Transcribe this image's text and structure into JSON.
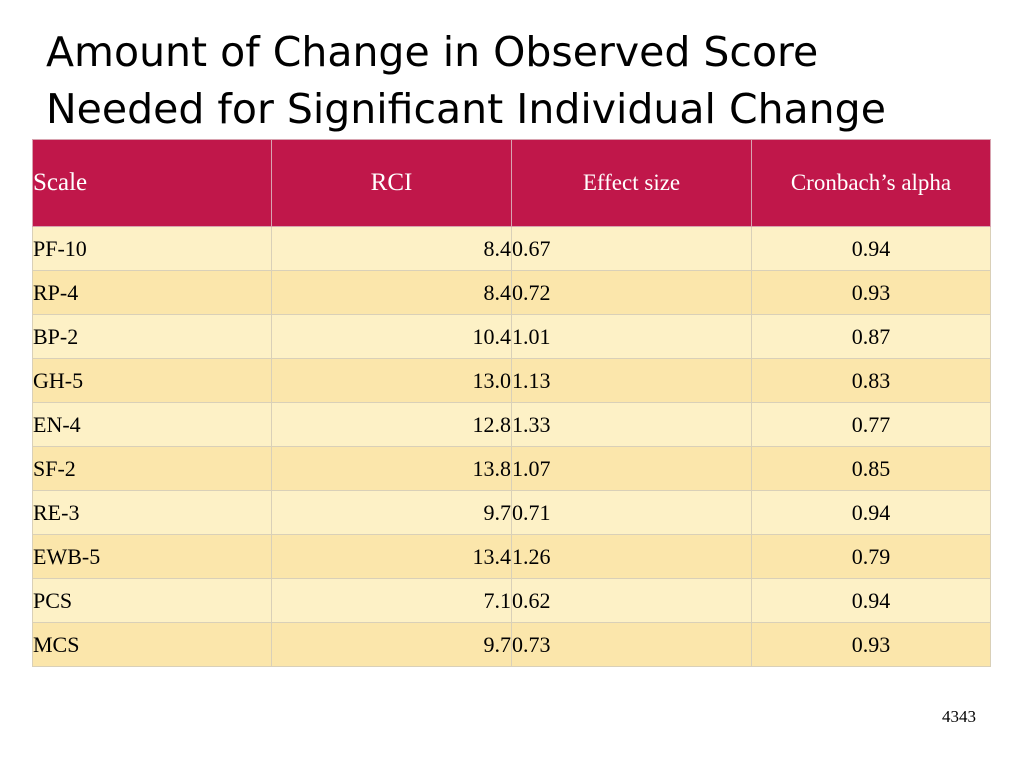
{
  "slide": {
    "title_lines": [
      "Amount of Change in Observed Score",
      "Needed for Significant Individual Change"
    ],
    "page_number": "4343"
  },
  "table": {
    "headers": {
      "scale": "Scale",
      "rci": "RCI",
      "effect_size": "Effect size",
      "alpha": "Cronbach’s alpha"
    },
    "rows": [
      {
        "scale": "PF-10",
        "rci": "8.4",
        "effect_size": "0.67",
        "alpha": "0.94"
      },
      {
        "scale": "RP-4",
        "rci": "8.4",
        "effect_size": "0.72",
        "alpha": "0.93"
      },
      {
        "scale": "BP-2",
        "rci": "10.4",
        "effect_size": "1.01",
        "alpha": "0.87"
      },
      {
        "scale": "GH-5",
        "rci": "13.0",
        "effect_size": "1.13",
        "alpha": "0.83"
      },
      {
        "scale": "EN-4",
        "rci": "12.8",
        "effect_size": "1.33",
        "alpha": "0.77"
      },
      {
        "scale": "SF-2",
        "rci": "13.8",
        "effect_size": "1.07",
        "alpha": "0.85"
      },
      {
        "scale": "RE-3",
        "rci": "9.7",
        "effect_size": "0.71",
        "alpha": "0.94"
      },
      {
        "scale": "EWB-5",
        "rci": "13.4",
        "effect_size": "1.26",
        "alpha": "0.79"
      },
      {
        "scale": "PCS",
        "rci": "7.1",
        "effect_size": "0.62",
        "alpha": "0.94"
      },
      {
        "scale": "MCS",
        "rci": "9.7",
        "effect_size": "0.73",
        "alpha": "0.93"
      }
    ]
  },
  "colors": {
    "header_background": "#c0174a",
    "header_text": "#ffffff",
    "row_light": "#fdf1c6",
    "row_dark": "#fbe6ab"
  }
}
